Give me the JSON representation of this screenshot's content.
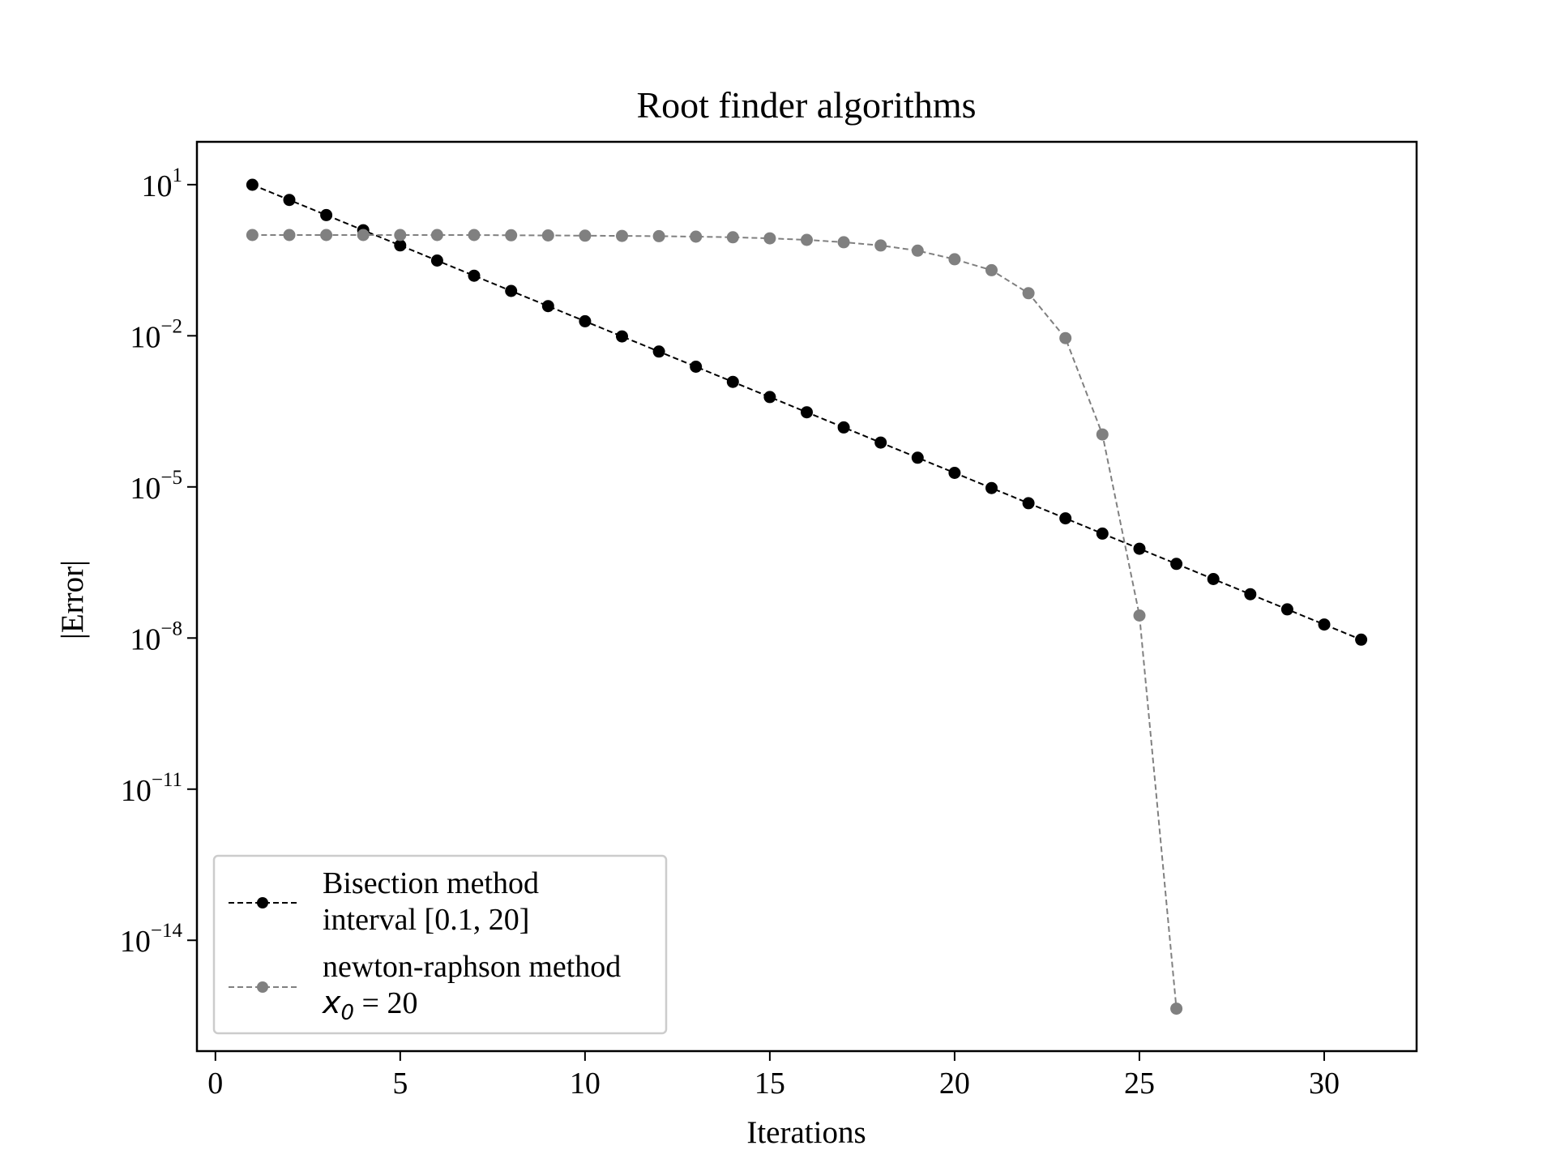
{
  "chart_data": {
    "type": "line",
    "title": "Root finder algorithms",
    "xlabel": "Iterations",
    "ylabel": "|Error|",
    "xlim": [
      -0.5,
      32.5
    ],
    "yscale": "log",
    "ylim_log10": [
      -16.2,
      1.85
    ],
    "x_ticks": [
      0,
      5,
      10,
      15,
      20,
      25,
      30
    ],
    "y_tick_exponents": [
      1,
      -2,
      -5,
      -8,
      -11,
      -14
    ],
    "y_tick_base": "10",
    "grid": false,
    "legend_position": "lower-left",
    "series": [
      {
        "name": "Bisection method interval [0.1, 20]",
        "legend_lines": [
          "Bisection method",
          "interval [0.1, 20]"
        ],
        "color": "#000000",
        "line_style": "dashed",
        "marker": "circle",
        "x": [
          1,
          2,
          3,
          4,
          5,
          6,
          7,
          8,
          9,
          10,
          11,
          12,
          13,
          14,
          15,
          16,
          17,
          18,
          19,
          20,
          21,
          22,
          23,
          24,
          25,
          26,
          27,
          28,
          29,
          30,
          31
        ],
        "y": [
          9.95,
          4.975,
          2.4875,
          1.24375,
          0.621875,
          0.3109375,
          0.15546875,
          0.077734375,
          0.0388671875,
          0.01943359375,
          0.009716796875,
          0.0048583984375,
          0.00242919921875,
          0.001214599609375,
          0.0006072998046875,
          0.00030364990234375,
          0.000151824951171875,
          7.59124755859375e-05,
          3.795623779296875e-05,
          1.8978118896484374e-05,
          9.489059448242189e-06,
          4.744529724121094e-06,
          2.372264862060547e-06,
          1.1861324310302734e-06,
          5.930662155151367e-07,
          2.9653310775756834e-07,
          1.4826655387878417e-07,
          7.413327693939208e-08,
          3.706663846969604e-08,
          1.853331923484802e-08,
          9.26665961742401e-09
        ]
      },
      {
        "name": "newton-raphson method x0 = 20",
        "legend_lines": [
          "newton-raphson method"
        ],
        "legend_math": {
          "var": "x",
          "sub": "0",
          "rest": " = 20"
        },
        "color": "#808080",
        "line_style": "dashed",
        "marker": "circle",
        "x": [
          1,
          2,
          3,
          4,
          5,
          6,
          7,
          8,
          9,
          10,
          11,
          12,
          13,
          14,
          15,
          16,
          17,
          18,
          19,
          20,
          21,
          22,
          23,
          24,
          25,
          26
        ],
        "y": [
          1.0,
          1.0,
          1.0,
          1.0,
          1.0,
          1.0,
          1.0,
          0.99,
          0.98,
          0.97,
          0.96,
          0.95,
          0.93,
          0.9,
          0.86,
          0.8,
          0.72,
          0.62,
          0.49,
          0.33,
          0.2,
          0.07,
          0.009,
          0.00011,
          2.8e-08,
          4.4e-16
        ]
      }
    ]
  }
}
